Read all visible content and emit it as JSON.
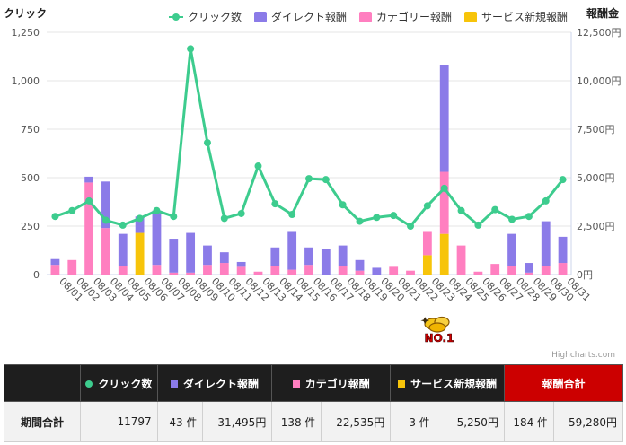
{
  "chart_data": {
    "type": "bar",
    "categories": [
      "08/01",
      "08/02",
      "08/03",
      "08/04",
      "08/05",
      "08/06",
      "08/07",
      "08/08",
      "08/09",
      "08/10",
      "08/11",
      "08/12",
      "08/13",
      "08/14",
      "08/15",
      "08/16",
      "08/17",
      "08/18",
      "08/19",
      "08/20",
      "08/21",
      "08/22",
      "08/23",
      "08/24",
      "08/25",
      "08/26",
      "08/27",
      "08/28",
      "08/29",
      "08/30",
      "08/31"
    ],
    "left_axis": {
      "title": "クリック",
      "ticks": [
        "0",
        "250",
        "500",
        "750",
        "1,000",
        "1,250"
      ],
      "ylim": [
        0,
        1250
      ]
    },
    "right_axis": {
      "title": "報酬金",
      "ticks": [
        "0円",
        "2,500円",
        "5,000円",
        "7,500円",
        "10,000円",
        "12,500円"
      ],
      "ylim": [
        0,
        12500
      ]
    },
    "line_series": {
      "name": "クリック数",
      "color": "#3dcc8e",
      "values": [
        300,
        330,
        380,
        280,
        255,
        290,
        330,
        300,
        1165,
        680,
        290,
        315,
        560,
        365,
        310,
        495,
        490,
        360,
        275,
        295,
        305,
        250,
        355,
        445,
        330,
        255,
        335,
        285,
        300,
        380,
        490
      ]
    },
    "bar_series": [
      {
        "name": "サービス新規報酬",
        "color": "#f7c40a",
        "values": [
          0,
          0,
          0,
          0,
          0,
          2150,
          0,
          0,
          0,
          0,
          0,
          0,
          0,
          0,
          0,
          0,
          0,
          0,
          0,
          0,
          0,
          0,
          1000,
          2100,
          0,
          0,
          0,
          0,
          0,
          0,
          0
        ]
      },
      {
        "name": "カテゴリー報酬",
        "color": "#ff7fc0",
        "values": [
          500,
          750,
          4750,
          2400,
          450,
          0,
          500,
          100,
          100,
          500,
          600,
          400,
          150,
          450,
          250,
          500,
          0,
          450,
          200,
          0,
          400,
          200,
          1200,
          3200,
          1500,
          150,
          550,
          450,
          100,
          450,
          600
        ]
      },
      {
        "name": "ダイレクト報酬",
        "color": "#8b7be8",
        "values": [
          300,
          0,
          300,
          2400,
          1650,
          850,
          2800,
          1750,
          2050,
          1000,
          550,
          250,
          0,
          950,
          1950,
          900,
          1300,
          1050,
          550,
          350,
          0,
          0,
          0,
          5500,
          0,
          0,
          0,
          1650,
          500,
          2300,
          1350
        ]
      }
    ],
    "legend_position": "top"
  },
  "credits": "Highcharts.com",
  "badge_label": "NO.1",
  "table": {
    "headers": {
      "clicks": "クリック数",
      "direct": "ダイレクト報酬",
      "category": "カテゴリ報酬",
      "service": "サービス新規報酬",
      "total": "報酬合計"
    },
    "row": {
      "label": "期間合計",
      "clicks": "11797",
      "direct_count": "43 件",
      "direct_amount": "31,495円",
      "category_count": "138 件",
      "category_amount": "22,535円",
      "service_count": "3 件",
      "service_amount": "5,250円",
      "total_count": "184 件",
      "total_amount": "59,280円"
    },
    "colors": {
      "clicks": "#3dcc8e",
      "direct": "#8b7be8",
      "category": "#ff7fc0",
      "service": "#f7c40a",
      "total_bg": "#cc0000"
    }
  }
}
